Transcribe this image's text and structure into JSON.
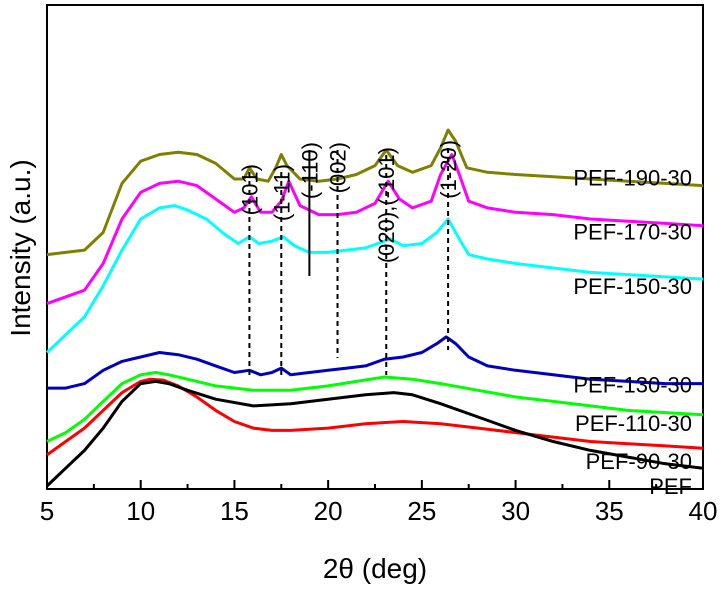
{
  "chart_data": {
    "type": "line",
    "xlabel": "2θ (deg)",
    "ylabel": "Intensity (a.u.)",
    "xlim": [
      5,
      40
    ],
    "xticks": [
      5,
      10,
      15,
      20,
      25,
      30,
      35,
      40
    ],
    "xtick_labels": [
      "5",
      "10",
      "15",
      "20",
      "25",
      "30",
      "35",
      "40"
    ],
    "y_units": "a.u.",
    "y_ticks_labeled": false,
    "grid": false,
    "series": [
      {
        "name": "PEF-190-30",
        "color": "#808000",
        "x": [
          5,
          7,
          8,
          9,
          10,
          11,
          12,
          13,
          14,
          15,
          15.5,
          15.8,
          16.2,
          16.8,
          17.2,
          17.5,
          17.8,
          18.5,
          19.5,
          20.5,
          21.5,
          22.5,
          23.1,
          23.7,
          24.5,
          25.5,
          26.0,
          26.4,
          26.8,
          27.4,
          28.5,
          30,
          32,
          34,
          36,
          38,
          40
        ],
        "y": [
          0.52,
          0.53,
          0.57,
          0.68,
          0.73,
          0.745,
          0.75,
          0.745,
          0.725,
          0.69,
          0.69,
          0.715,
          0.69,
          0.685,
          0.715,
          0.745,
          0.72,
          0.69,
          0.685,
          0.69,
          0.7,
          0.72,
          0.755,
          0.72,
          0.705,
          0.72,
          0.76,
          0.8,
          0.775,
          0.715,
          0.705,
          0.7,
          0.695,
          0.69,
          0.685,
          0.68,
          0.675
        ]
      },
      {
        "name": "PEF-170-30",
        "color": "#ff00ff",
        "x": [
          5,
          7,
          8,
          9,
          10,
          11,
          12,
          13,
          14,
          15,
          15.5,
          15.9,
          16.4,
          17.0,
          17.5,
          17.9,
          18.5,
          19.5,
          20.5,
          21.5,
          22.5,
          23.2,
          23.8,
          24.5,
          25.5,
          26.0,
          26.6,
          27.0,
          27.5,
          28.5,
          30,
          32,
          34,
          36,
          38,
          40
        ],
        "y": [
          0.41,
          0.44,
          0.5,
          0.6,
          0.66,
          0.68,
          0.685,
          0.675,
          0.645,
          0.615,
          0.625,
          0.65,
          0.615,
          0.615,
          0.64,
          0.685,
          0.63,
          0.61,
          0.61,
          0.615,
          0.635,
          0.685,
          0.645,
          0.625,
          0.64,
          0.7,
          0.745,
          0.7,
          0.64,
          0.625,
          0.615,
          0.61,
          0.6,
          0.595,
          0.59,
          0.585
        ]
      },
      {
        "name": "PEF-150-30",
        "color": "#00ffff",
        "x": [
          5,
          6,
          7,
          8,
          9,
          10,
          11,
          11.8,
          12.5,
          13.5,
          14.5,
          15.2,
          15.8,
          16.3,
          17.0,
          17.6,
          18.2,
          19,
          20,
          21,
          22,
          23.3,
          24,
          25,
          25.8,
          26.4,
          27.0,
          27.5,
          28.5,
          30,
          32,
          34,
          36,
          38,
          40
        ],
        "y": [
          0.3,
          0.34,
          0.38,
          0.45,
          0.53,
          0.6,
          0.625,
          0.63,
          0.62,
          0.6,
          0.565,
          0.545,
          0.56,
          0.545,
          0.55,
          0.56,
          0.54,
          0.525,
          0.525,
          0.53,
          0.535,
          0.555,
          0.54,
          0.545,
          0.57,
          0.6,
          0.555,
          0.52,
          0.51,
          0.5,
          0.49,
          0.48,
          0.475,
          0.47,
          0.465
        ]
      },
      {
        "name": "PEF-130-30",
        "color": "#0000c0",
        "x": [
          5,
          6,
          7,
          8,
          9,
          10,
          11,
          12,
          13,
          14,
          15,
          15.8,
          16.4,
          17,
          17.5,
          18.0,
          19,
          20,
          21,
          22,
          23,
          24,
          25,
          25.8,
          26.3,
          26.8,
          27.5,
          28.5,
          30,
          32,
          34,
          36,
          38,
          40
        ],
        "y": [
          0.22,
          0.22,
          0.23,
          0.26,
          0.28,
          0.29,
          0.3,
          0.295,
          0.285,
          0.27,
          0.255,
          0.26,
          0.25,
          0.255,
          0.265,
          0.25,
          0.255,
          0.26,
          0.265,
          0.27,
          0.285,
          0.29,
          0.3,
          0.32,
          0.335,
          0.32,
          0.29,
          0.27,
          0.26,
          0.25,
          0.24,
          0.235,
          0.23,
          0.23
        ]
      },
      {
        "name": "PEF-110-30",
        "color": "#00ff00",
        "x": [
          5,
          6,
          7,
          8,
          9,
          10,
          10.8,
          11.5,
          12.5,
          14,
          16,
          18,
          20,
          21.5,
          23,
          24.5,
          26,
          28,
          30,
          32,
          34,
          36,
          38,
          40
        ],
        "y": [
          0.1,
          0.12,
          0.15,
          0.19,
          0.23,
          0.25,
          0.255,
          0.25,
          0.24,
          0.225,
          0.215,
          0.215,
          0.225,
          0.235,
          0.245,
          0.24,
          0.23,
          0.215,
          0.2,
          0.19,
          0.18,
          0.17,
          0.165,
          0.16
        ]
      },
      {
        "name": "PEF-90-30",
        "color": "#ff0000",
        "x": [
          5,
          6,
          7,
          8,
          9,
          10,
          10.5,
          11.2,
          12,
          13,
          14,
          15,
          16,
          17,
          18,
          20,
          22,
          24,
          26,
          28,
          30,
          32,
          34,
          36,
          38,
          40
        ],
        "y": [
          0.07,
          0.1,
          0.13,
          0.17,
          0.21,
          0.235,
          0.24,
          0.238,
          0.225,
          0.2,
          0.17,
          0.145,
          0.13,
          0.125,
          0.125,
          0.13,
          0.14,
          0.145,
          0.14,
          0.13,
          0.12,
          0.11,
          0.1,
          0.095,
          0.09,
          0.085
        ]
      },
      {
        "name": "PEF",
        "color": "#000000",
        "x": [
          5,
          6,
          7,
          8,
          9,
          10,
          10.8,
          11.5,
          12.5,
          14,
          16,
          18,
          20,
          22,
          23.5,
          24.5,
          26,
          28,
          30,
          32,
          34,
          36,
          38,
          40
        ],
        "y": [
          0.0,
          0.04,
          0.08,
          0.13,
          0.19,
          0.23,
          0.235,
          0.23,
          0.215,
          0.195,
          0.18,
          0.185,
          0.195,
          0.205,
          0.21,
          0.205,
          0.185,
          0.155,
          0.125,
          0.1,
          0.08,
          0.065,
          0.05,
          0.04
        ]
      }
    ],
    "annotations": [
      {
        "text": "(101)",
        "x": 15.8
      },
      {
        "text": "(1-11)",
        "x": 17.5
      },
      {
        "text": "(-110)",
        "x": 19.0
      },
      {
        "text": "(002)",
        "x": 20.5
      },
      {
        "text": "(020),(-101)",
        "x": 23.1
      },
      {
        "text": "(1-20)",
        "x": 26.4
      }
    ]
  }
}
